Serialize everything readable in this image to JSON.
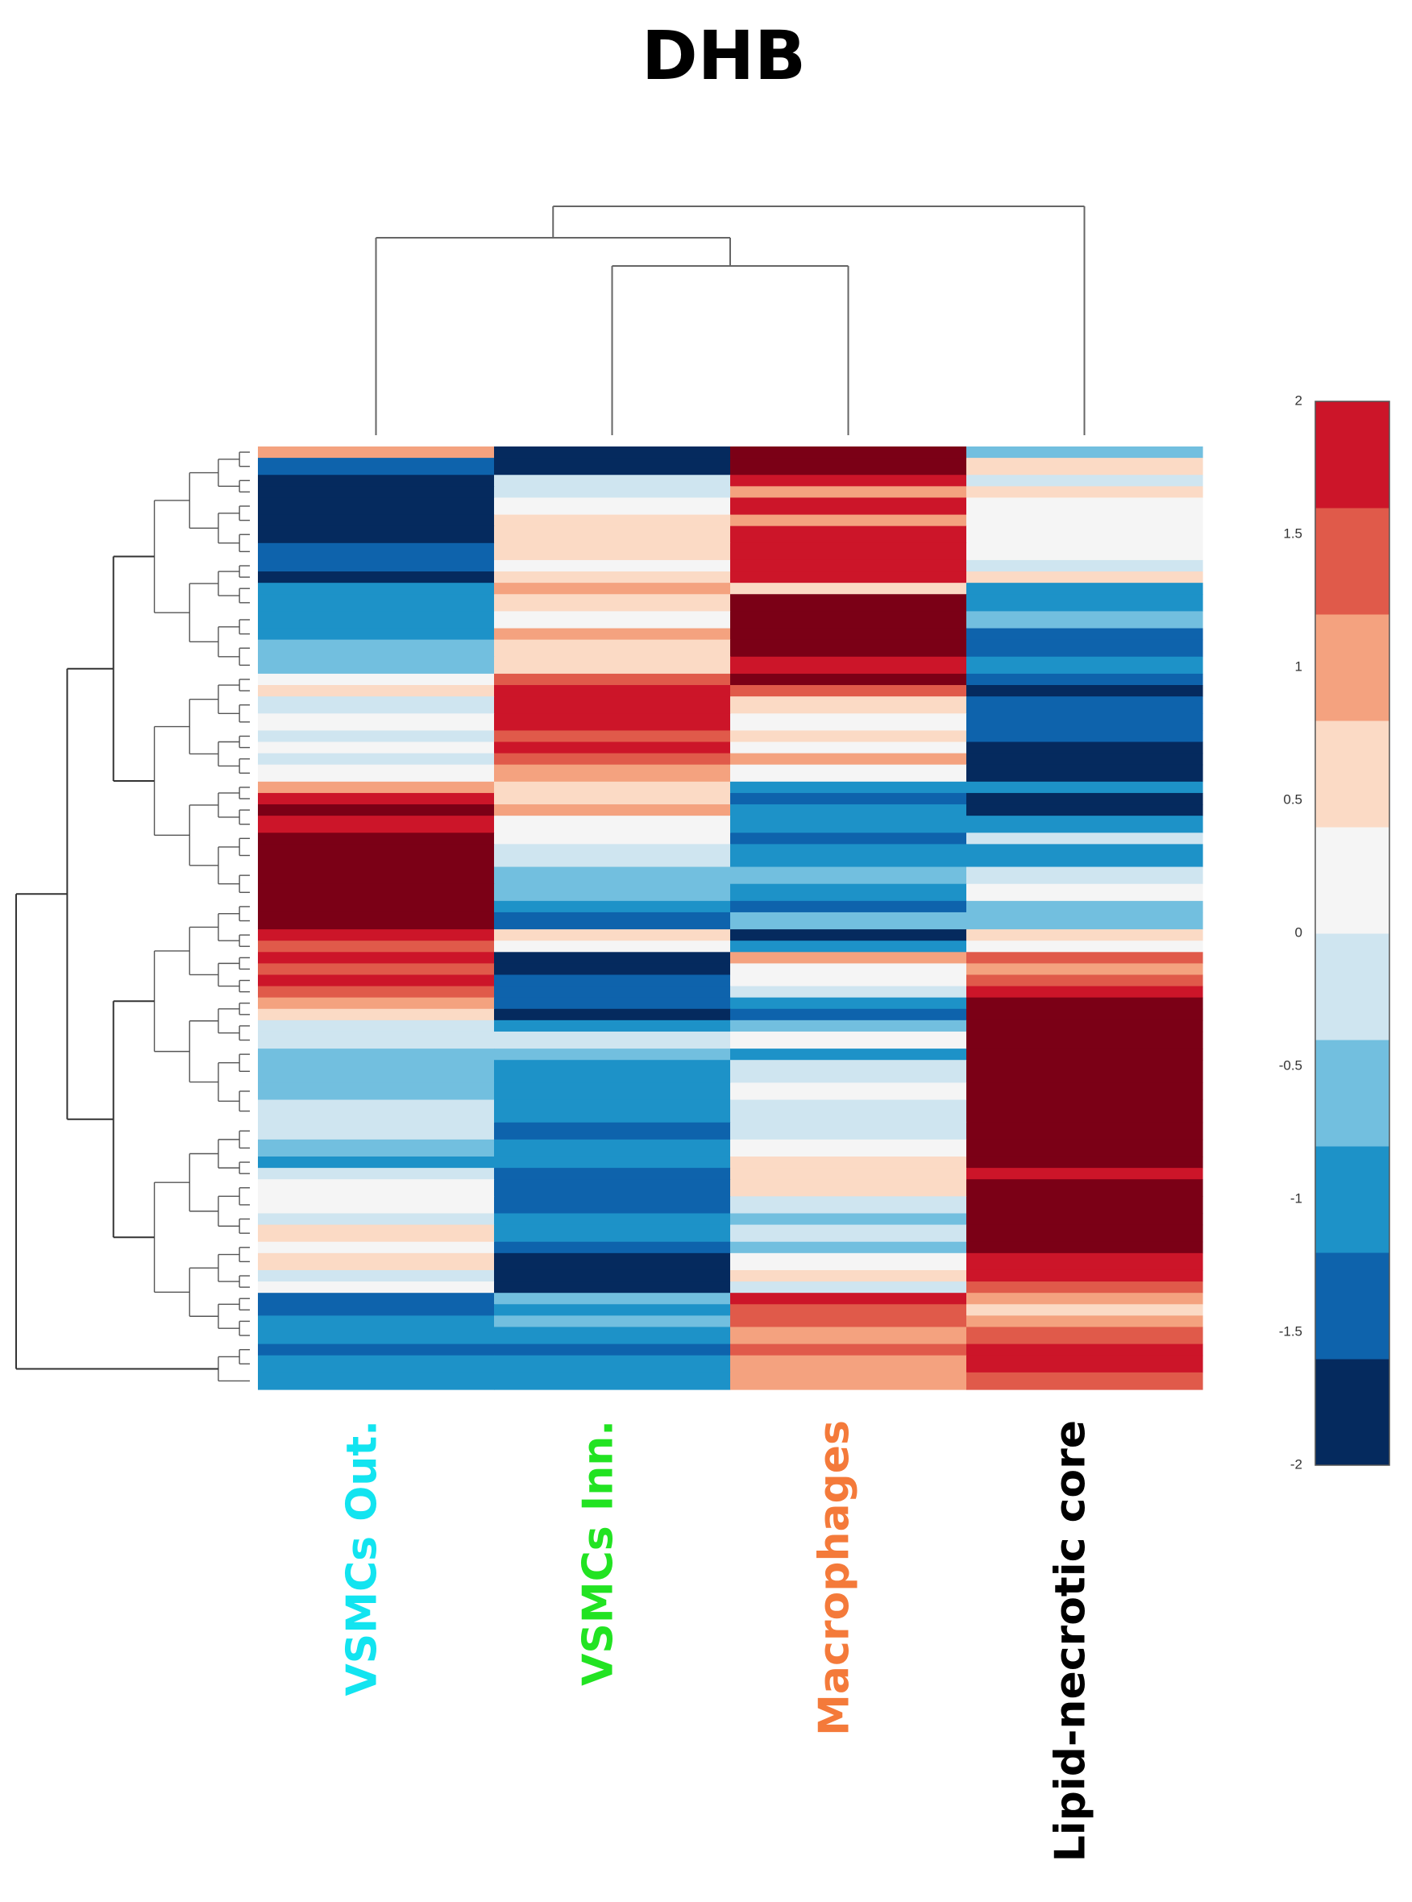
{
  "chart_data": {
    "type": "heatmap",
    "title": "DHB",
    "columns": [
      {
        "label": "VSMCs Out.",
        "color": "#12e4f0"
      },
      {
        "label": "VSMCs Inn.",
        "color": "#22e322"
      },
      {
        "label": "Macrophages",
        "color": "#f47a3a"
      },
      {
        "label": "Lipid-necrotic core",
        "color": "#000000"
      }
    ],
    "colorbar": {
      "range": [
        -2,
        2
      ],
      "tick_labels": [
        "2",
        "1.5",
        "1",
        "0.5",
        "0",
        "-0.5",
        "-1",
        "-1.5",
        "-2"
      ],
      "levels": [
        {
          "from": -2.0,
          "to": -1.6,
          "color": "#052a5e"
        },
        {
          "from": -1.6,
          "to": -1.2,
          "color": "#0e63ac"
        },
        {
          "from": -1.2,
          "to": -0.8,
          "color": "#1d92c8"
        },
        {
          "from": -0.8,
          "to": -0.4,
          "color": "#72bfdf"
        },
        {
          "from": -0.4,
          "to": 0.0,
          "color": "#cfe5f0"
        },
        {
          "from": 0.0,
          "to": 0.4,
          "color": "#f5f5f5"
        },
        {
          "from": 0.4,
          "to": 0.8,
          "color": "#fbdac5"
        },
        {
          "from": 0.8,
          "to": 1.2,
          "color": "#f4a27f"
        },
        {
          "from": 1.2,
          "to": 1.6,
          "color": "#e05a4a"
        },
        {
          "from": 1.6,
          "to": 2.0,
          "color": "#cc1529"
        },
        {
          "from": 2.0,
          "to": 2.4,
          "color": "#7b0016"
        }
      ]
    },
    "column_dendrogram": "((VSMCs Out.,(VSMCs Inn.,Macrophages)),Lipid-necrotic core)",
    "row_blocks": [
      {
        "weight": 2,
        "values": [
          1.0,
          -1.8,
          2.2,
          -0.6
        ]
      },
      {
        "weight": 3,
        "values": [
          -1.4,
          -1.8,
          2.2,
          0.6
        ]
      },
      {
        "weight": 2,
        "values": [
          -2.0,
          -0.2,
          1.8,
          -0.2
        ]
      },
      {
        "weight": 2,
        "values": [
          -2.0,
          -0.2,
          1.0,
          0.6
        ]
      },
      {
        "weight": 3,
        "values": [
          -2.0,
          0.2,
          1.8,
          0.2
        ]
      },
      {
        "weight": 2,
        "values": [
          -2.0,
          0.6,
          1.0,
          0.2
        ]
      },
      {
        "weight": 3,
        "values": [
          -2.0,
          0.6,
          1.8,
          0.2
        ]
      },
      {
        "weight": 3,
        "values": [
          -1.4,
          0.6,
          1.8,
          0.2
        ]
      },
      {
        "weight": 2,
        "values": [
          -1.4,
          0.2,
          1.8,
          -0.2
        ]
      },
      {
        "weight": 2,
        "values": [
          -1.8,
          0.6,
          1.8,
          0.6
        ]
      },
      {
        "weight": 2,
        "values": [
          -1.0,
          1.0,
          0.6,
          -1.0
        ]
      },
      {
        "weight": 3,
        "values": [
          -1.0,
          0.6,
          2.2,
          -1.0
        ]
      },
      {
        "weight": 3,
        "values": [
          -1.0,
          0.2,
          2.2,
          -0.6
        ]
      },
      {
        "weight": 2,
        "values": [
          -1.0,
          1.0,
          2.2,
          -1.4
        ]
      },
      {
        "weight": 3,
        "values": [
          -0.6,
          0.6,
          2.2,
          -1.4
        ]
      },
      {
        "weight": 3,
        "values": [
          -0.6,
          0.6,
          1.8,
          -1.0
        ]
      },
      {
        "weight": 2,
        "values": [
          0.2,
          1.4,
          2.2,
          -1.4
        ]
      },
      {
        "weight": 2,
        "values": [
          0.6,
          1.8,
          1.4,
          -1.8
        ]
      },
      {
        "weight": 3,
        "values": [
          -0.2,
          1.8,
          0.6,
          -1.4
        ]
      },
      {
        "weight": 3,
        "values": [
          0.2,
          1.8,
          0.2,
          -1.4
        ]
      },
      {
        "weight": 2,
        "values": [
          -0.2,
          1.4,
          0.6,
          -1.4
        ]
      },
      {
        "weight": 2,
        "values": [
          0.2,
          1.8,
          0.2,
          -1.8
        ]
      },
      {
        "weight": 2,
        "values": [
          -0.2,
          1.4,
          1.0,
          -2.0
        ]
      },
      {
        "weight": 3,
        "values": [
          0.2,
          1.0,
          0.2,
          -2.0
        ]
      },
      {
        "weight": 2,
        "values": [
          1.0,
          0.6,
          -1.0,
          -1.0
        ]
      },
      {
        "weight": 2,
        "values": [
          1.8,
          0.6,
          -1.4,
          -2.0
        ]
      },
      {
        "weight": 2,
        "values": [
          2.2,
          1.0,
          -1.0,
          -2.0
        ]
      },
      {
        "weight": 3,
        "values": [
          1.8,
          0.2,
          -1.0,
          -1.0
        ]
      },
      {
        "weight": 2,
        "values": [
          2.2,
          0.2,
          -1.4,
          -0.2
        ]
      },
      {
        "weight": 4,
        "values": [
          2.2,
          -0.2,
          -1.0,
          -1.0
        ]
      },
      {
        "weight": 3,
        "values": [
          2.2,
          -0.6,
          -0.6,
          -0.2
        ]
      },
      {
        "weight": 3,
        "values": [
          2.2,
          -0.6,
          -1.0,
          0.2
        ]
      },
      {
        "weight": 2,
        "values": [
          2.2,
          -1.0,
          -1.4,
          -0.6
        ]
      },
      {
        "weight": 3,
        "values": [
          2.2,
          -1.4,
          -0.6,
          -0.6
        ]
      },
      {
        "weight": 2,
        "values": [
          1.8,
          0.6,
          -2.0,
          0.6
        ]
      },
      {
        "weight": 2,
        "values": [
          1.4,
          0.2,
          -1.0,
          0.2
        ]
      },
      {
        "weight": 2,
        "values": [
          1.8,
          -2.0,
          1.0,
          1.4
        ]
      },
      {
        "weight": 2,
        "values": [
          1.4,
          -2.0,
          0.2,
          1.0
        ]
      },
      {
        "weight": 2,
        "values": [
          1.8,
          -1.4,
          0.2,
          1.4
        ]
      },
      {
        "weight": 2,
        "values": [
          1.4,
          -1.4,
          -0.2,
          1.8
        ]
      },
      {
        "weight": 2,
        "values": [
          1.0,
          -1.4,
          -1.0,
          2.2
        ]
      },
      {
        "weight": 2,
        "values": [
          0.6,
          -1.8,
          -1.4,
          2.2
        ]
      },
      {
        "weight": 2,
        "values": [
          -0.2,
          -1.0,
          -0.6,
          2.2
        ]
      },
      {
        "weight": 3,
        "values": [
          -0.2,
          -0.2,
          0.2,
          2.2
        ]
      },
      {
        "weight": 2,
        "values": [
          -0.6,
          -0.6,
          -1.0,
          2.2
        ]
      },
      {
        "weight": 4,
        "values": [
          -0.6,
          -1.0,
          -0.2,
          2.2
        ]
      },
      {
        "weight": 3,
        "values": [
          -0.6,
          -1.0,
          0.2,
          2.2
        ]
      },
      {
        "weight": 4,
        "values": [
          -0.2,
          -1.0,
          -0.2,
          2.2
        ]
      },
      {
        "weight": 3,
        "values": [
          -0.2,
          -1.4,
          -0.2,
          2.2
        ]
      },
      {
        "weight": 3,
        "values": [
          -0.6,
          -1.0,
          0.2,
          2.2
        ]
      },
      {
        "weight": 2,
        "values": [
          -1.0,
          -1.0,
          0.6,
          2.2
        ]
      },
      {
        "weight": 2,
        "values": [
          -0.2,
          -1.4,
          0.6,
          1.8
        ]
      },
      {
        "weight": 3,
        "values": [
          0.2,
          -1.4,
          0.6,
          2.2
        ]
      },
      {
        "weight": 3,
        "values": [
          0.2,
          -1.4,
          -0.2,
          2.2
        ]
      },
      {
        "weight": 2,
        "values": [
          -0.2,
          -1.0,
          -0.6,
          2.2
        ]
      },
      {
        "weight": 3,
        "values": [
          0.6,
          -1.0,
          -0.2,
          2.2
        ]
      },
      {
        "weight": 2,
        "values": [
          0.2,
          -1.4,
          -0.6,
          2.2
        ]
      },
      {
        "weight": 3,
        "values": [
          0.6,
          -2.0,
          0.2,
          1.8
        ]
      },
      {
        "weight": 2,
        "values": [
          -0.2,
          -2.0,
          0.6,
          1.8
        ]
      },
      {
        "weight": 2,
        "values": [
          0.2,
          -2.0,
          -0.2,
          1.4
        ]
      },
      {
        "weight": 2,
        "values": [
          -1.4,
          -0.6,
          1.8,
          1.0
        ]
      },
      {
        "weight": 2,
        "values": [
          -1.4,
          -1.0,
          1.4,
          0.6
        ]
      },
      {
        "weight": 2,
        "values": [
          -1.0,
          -0.6,
          1.4,
          1.0
        ]
      },
      {
        "weight": 3,
        "values": [
          -1.0,
          -1.0,
          1.0,
          1.4
        ]
      },
      {
        "weight": 2,
        "values": [
          -1.4,
          -1.4,
          1.4,
          1.8
        ]
      },
      {
        "weight": 3,
        "values": [
          -1.0,
          -1.0,
          1.0,
          1.8
        ]
      },
      {
        "weight": 3,
        "values": [
          -1.0,
          -1.0,
          1.0,
          1.4
        ]
      }
    ]
  }
}
